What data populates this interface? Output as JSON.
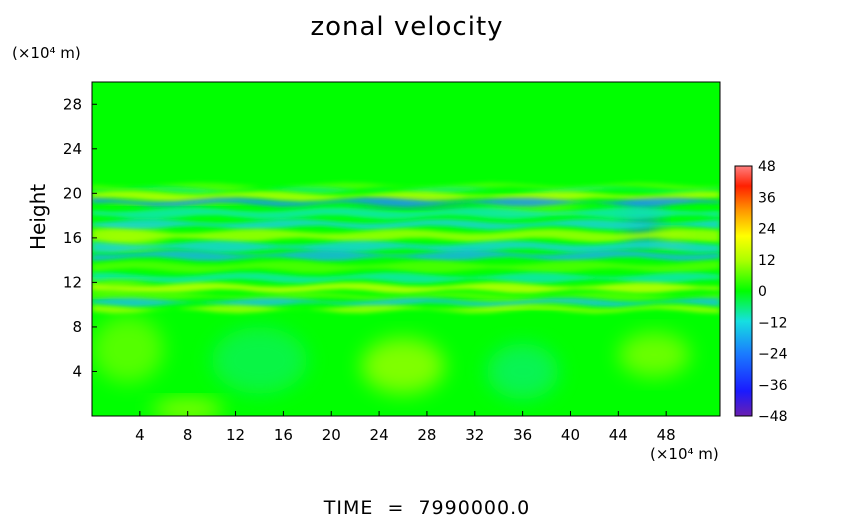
{
  "chart_data": {
    "type": "heatmap",
    "title": "zonal velocity",
    "ylabel": "Height",
    "x_unit": "(×10⁴ m)",
    "y_unit": "(×10⁴ m)",
    "xlim": [
      0,
      52.5
    ],
    "ylim": [
      0,
      30
    ],
    "x_ticks": [
      4,
      8,
      12,
      16,
      20,
      24,
      28,
      32,
      36,
      40,
      44,
      48
    ],
    "y_ticks": [
      4,
      8,
      12,
      16,
      20,
      24,
      28
    ],
    "colorbar": {
      "range": [
        -48,
        48
      ],
      "ticks": [
        48,
        36,
        24,
        12,
        0,
        -12,
        -24,
        -36,
        -48
      ],
      "tick_labels": [
        "48",
        "36",
        "24",
        "12",
        "0",
        "−12",
        "−24",
        "−36",
        "−48"
      ]
    },
    "bands": [
      {
        "y": 20.6,
        "width": 0.35,
        "value": 6
      },
      {
        "y": 20.3,
        "width": 0.25,
        "value": -6
      },
      {
        "y": 19.7,
        "width": 0.6,
        "value": 14
      },
      {
        "y": 19.2,
        "width": 0.45,
        "value": -22
      },
      {
        "y": 18.2,
        "width": 0.7,
        "value": -10
      },
      {
        "y": 17.2,
        "width": 0.6,
        "value": -14
      },
      {
        "y": 16.2,
        "width": 0.8,
        "value": 12
      },
      {
        "y": 15.2,
        "width": 0.7,
        "value": -14
      },
      {
        "y": 14.4,
        "width": 0.6,
        "value": -18
      },
      {
        "y": 13.4,
        "width": 0.7,
        "value": 6
      },
      {
        "y": 12.4,
        "width": 0.6,
        "value": -10
      },
      {
        "y": 11.5,
        "width": 0.6,
        "value": 16
      },
      {
        "y": 10.7,
        "width": 0.5,
        "value": 6
      },
      {
        "y": 10.2,
        "width": 0.45,
        "value": -16
      },
      {
        "y": 9.6,
        "width": 0.35,
        "value": 12
      }
    ],
    "blobs": [
      {
        "x": 26,
        "y": 4.5,
        "rx": 3.5,
        "ry": 2.5,
        "value": 12
      },
      {
        "x": 8,
        "y": 0.6,
        "rx": 3,
        "ry": 0.9,
        "value": 14
      },
      {
        "x": 47,
        "y": 5.5,
        "rx": 3,
        "ry": 2,
        "value": 10
      },
      {
        "x": 36,
        "y": 4,
        "rx": 3,
        "ry": 2.5,
        "value": -6
      },
      {
        "x": 14,
        "y": 5,
        "rx": 4,
        "ry": 3,
        "value": -5
      },
      {
        "x": 3,
        "y": 6,
        "rx": 3,
        "ry": 3,
        "value": 8
      },
      {
        "x": 46,
        "y": 16.5,
        "rx": 1.5,
        "ry": 1,
        "value": -28
      },
      {
        "x": 48.5,
        "y": 16,
        "rx": 1.2,
        "ry": 0.7,
        "value": 24
      },
      {
        "x": 46,
        "y": 18.5,
        "rx": 1.5,
        "ry": 0.8,
        "value": -24
      },
      {
        "x": 37,
        "y": 19,
        "rx": 4,
        "ry": 0.6,
        "value": 14
      },
      {
        "x": 27,
        "y": 19.1,
        "rx": 5,
        "ry": 0.4,
        "value": -30
      },
      {
        "x": 7,
        "y": 19.7,
        "rx": 6,
        "ry": 0.5,
        "value": 18
      },
      {
        "x": 3,
        "y": 16,
        "rx": 3,
        "ry": 0.8,
        "value": 18
      },
      {
        "x": 36,
        "y": 10,
        "rx": 6,
        "ry": 0.3,
        "value": 22
      },
      {
        "x": 2,
        "y": 11.5,
        "rx": 3,
        "ry": 0.6,
        "value": 20
      }
    ]
  },
  "time_label": "TIME  =  7990000.0"
}
